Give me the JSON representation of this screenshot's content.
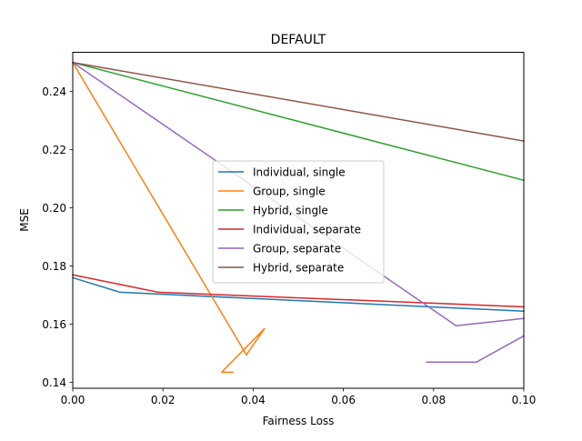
{
  "chart_data": {
    "type": "line",
    "title": "DEFAULT",
    "xlabel": "Fairness Loss",
    "ylabel": "MSE",
    "xlim": [
      0.0,
      0.1
    ],
    "ylim": [
      0.138,
      0.2535
    ],
    "xticks": [
      0.0,
      0.02,
      0.04,
      0.06,
      0.08,
      0.1
    ],
    "xtick_labels": [
      "0.00",
      "0.02",
      "0.04",
      "0.06",
      "0.08",
      "0.10"
    ],
    "yticks": [
      0.14,
      0.16,
      0.18,
      0.2,
      0.22,
      0.24
    ],
    "ytick_labels": [
      "0.14",
      "0.16",
      "0.18",
      "0.20",
      "0.22",
      "0.24"
    ],
    "grid": false,
    "legend_position": "center",
    "series": [
      {
        "name": "Individual, single",
        "color": "#1f77b4",
        "x": [
          0.0,
          0.0105,
          0.1
        ],
        "y": [
          0.176,
          0.171,
          0.1645
        ]
      },
      {
        "name": "Group, single",
        "color": "#ff7f0e",
        "x": [
          0.0,
          0.0385,
          0.0425,
          0.033,
          0.0355
        ],
        "y": [
          0.25,
          0.1495,
          0.1585,
          0.1435,
          0.1435
        ]
      },
      {
        "name": "Hybrid, single",
        "color": "#2ca02c",
        "x": [
          0.0,
          0.1
        ],
        "y": [
          0.25,
          0.2095
        ]
      },
      {
        "name": "Individual, separate",
        "color": "#d62728",
        "x": [
          0.0,
          0.019,
          0.1
        ],
        "y": [
          0.177,
          0.171,
          0.166
        ]
      },
      {
        "name": "Group, separate",
        "color": "#9467bd",
        "x": [
          0.0,
          0.085,
          0.1
        ],
        "y": [
          0.25,
          0.1595,
          0.162
        ],
        "extra_segments": [
          {
            "x": [
              0.0785,
              0.0895,
              0.1
            ],
            "y": [
              0.147,
              0.147,
              0.156
            ]
          }
        ]
      },
      {
        "name": "Hybrid, separate",
        "color": "#8c564b",
        "x": [
          0.0,
          0.1
        ],
        "y": [
          0.25,
          0.223
        ]
      }
    ]
  }
}
